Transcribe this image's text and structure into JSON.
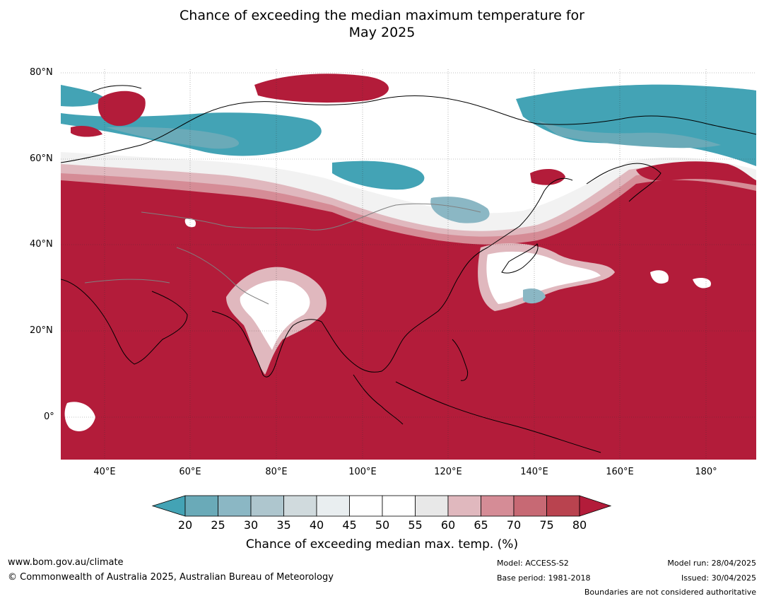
{
  "title_line1": "Chance of exceeding the median maximum temperature for",
  "title_line2": "May 2025",
  "lat_labels": [
    "80°N",
    "60°N",
    "40°N",
    "20°N",
    "0°"
  ],
  "lon_labels": [
    "40°E",
    "60°E",
    "80°E",
    "100°E",
    "120°E",
    "140°E",
    "160°E",
    "180°"
  ],
  "colorbar": {
    "ticks": [
      "20",
      "25",
      "30",
      "35",
      "40",
      "45",
      "50",
      "55",
      "60",
      "65",
      "70",
      "75",
      "80"
    ],
    "colors": [
      "#43a3b5",
      "#6aaab8",
      "#8bb7c4",
      "#aec6ce",
      "#d0dadd",
      "#e9eef0",
      "#ffffff",
      "#ffffff",
      "#e8e8e8",
      "#e0b8be",
      "#d58c96",
      "#c76974",
      "#b9434f",
      "#b31c3a"
    ],
    "label": "Chance of exceeding median max. temp. (%)"
  },
  "footer": {
    "website": "www.bom.gov.au/climate",
    "copyright": "© Commonwealth of Australia 2025, Australian Bureau of Meteorology",
    "model": "Model: ACCESS-S2",
    "base_period": "Base period: 1981-2018",
    "model_run": "Model run: 28/04/2025",
    "issued": "Issued: 30/04/2025",
    "disclaimer": "Boundaries are not considered authoritative"
  }
}
